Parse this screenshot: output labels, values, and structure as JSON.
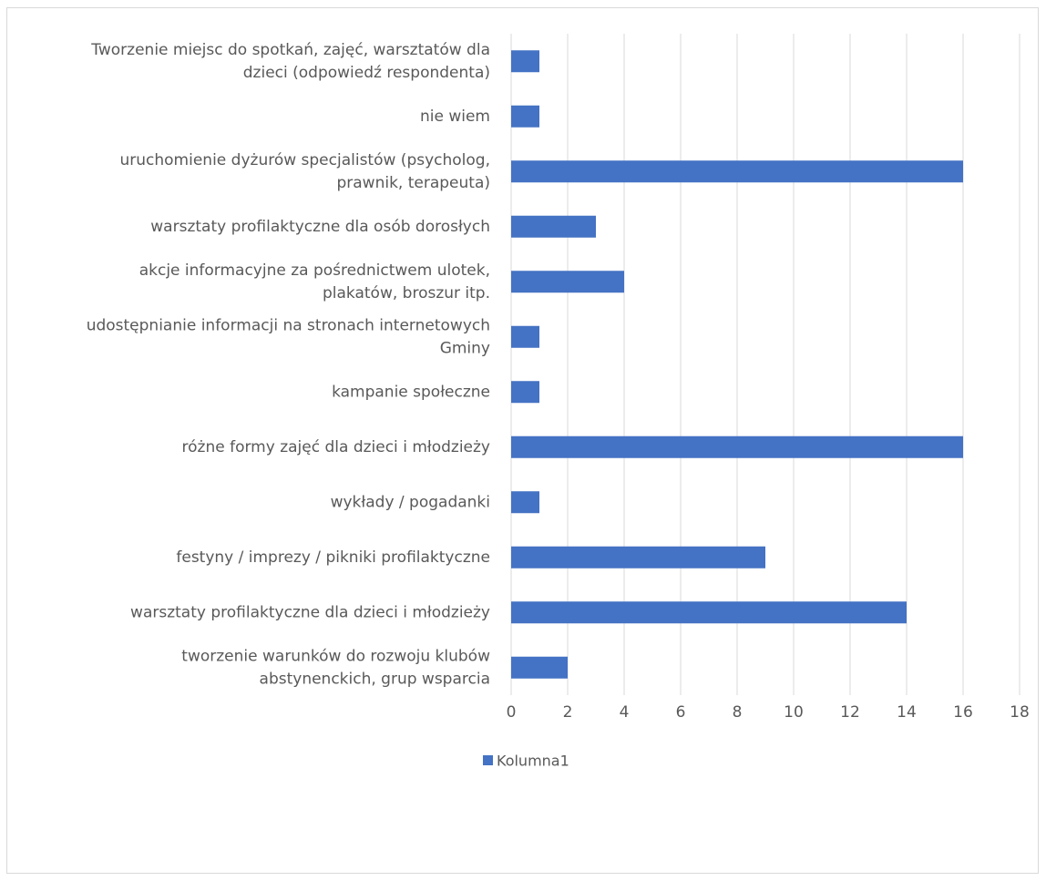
{
  "chart_data": {
    "type": "bar",
    "orientation": "horizontal",
    "categories": [
      [
        "Tworzenie miejsc do spotkań, zajęć, warsztatów dla",
        "dzieci (odpowiedź respondenta)"
      ],
      [
        "nie wiem"
      ],
      [
        "uruchomienie dyżurów specjalistów (psycholog,",
        "prawnik, terapeuta)"
      ],
      [
        "warsztaty profilaktyczne dla osób dorosłych"
      ],
      [
        "akcje informacyjne za pośrednictwem ulotek,",
        "plakatów, broszur itp."
      ],
      [
        "udostępnianie informacji na stronach internetowych",
        "Gminy"
      ],
      [
        "kampanie społeczne"
      ],
      [
        "różne formy zajęć dla dzieci i młodzieży"
      ],
      [
        "wykłady / pogadanki"
      ],
      [
        "festyny / imprezy / pikniki profilaktyczne"
      ],
      [
        "warsztaty profilaktyczne dla dzieci i młodzieży"
      ],
      [
        "tworzenie warunków do rozwoju klubów",
        "abstynenckich, grup wsparcia"
      ]
    ],
    "series": [
      {
        "name": "Kolumna1",
        "color": "#4472c4",
        "values": [
          1,
          1,
          16,
          3,
          4,
          1,
          1,
          16,
          1,
          9,
          14,
          2
        ]
      }
    ],
    "xlim": [
      0,
      18
    ],
    "xticks": [
      "0",
      "2",
      "4",
      "6",
      "8",
      "10",
      "12",
      "14",
      "16",
      "18"
    ],
    "grid": true,
    "gridColor": "#d9d9d9",
    "legend": "bottom"
  }
}
